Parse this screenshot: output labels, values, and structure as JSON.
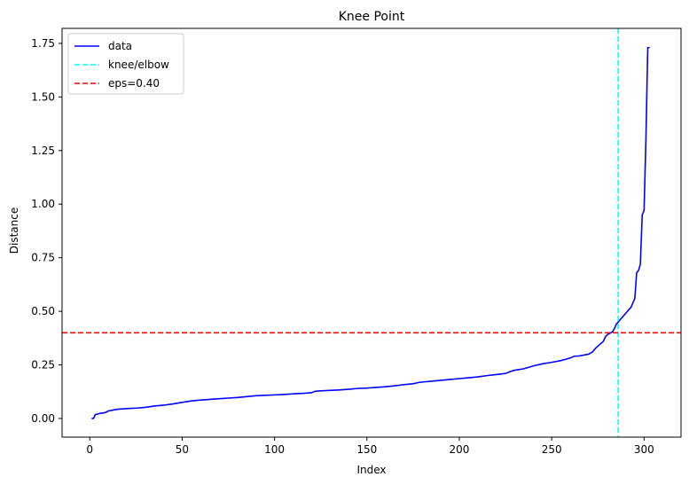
{
  "chart_data": {
    "type": "line",
    "title": "Knee Point",
    "xlabel": "Index",
    "ylabel": "Distance",
    "xlim": [
      -15,
      320
    ],
    "ylim": [
      -0.087,
      1.82
    ],
    "xticks": [
      0,
      50,
      100,
      150,
      200,
      250,
      300
    ],
    "yticks": [
      0.0,
      0.25,
      0.5,
      0.75,
      1.0,
      1.25,
      1.5,
      1.75
    ],
    "xtick_labels": [
      "0",
      "50",
      "100",
      "150",
      "200",
      "250",
      "300"
    ],
    "ytick_labels": [
      "0.00",
      "0.25",
      "0.50",
      "0.75",
      "1.00",
      "1.25",
      "1.50",
      "1.75"
    ],
    "grid": false,
    "legend_position": "top-left",
    "series": [
      {
        "name": "data",
        "color": "#0000ff",
        "style": "solid",
        "x": [
          1,
          2,
          3,
          4,
          5,
          6,
          7,
          8,
          9,
          10,
          15,
          20,
          25,
          30,
          35,
          40,
          45,
          50,
          55,
          60,
          65,
          70,
          75,
          80,
          85,
          90,
          95,
          100,
          105,
          110,
          115,
          120,
          122,
          125,
          130,
          135,
          140,
          145,
          150,
          155,
          160,
          165,
          170,
          175,
          178,
          180,
          185,
          190,
          195,
          200,
          205,
          210,
          215,
          220,
          225,
          228,
          230,
          235,
          240,
          245,
          250,
          255,
          260,
          262,
          265,
          270,
          272,
          274,
          276,
          278,
          279,
          280,
          281,
          282,
          283,
          284,
          285,
          286,
          287,
          288,
          289,
          290,
          291,
          292,
          293,
          294,
          295,
          296,
          297,
          298,
          299,
          300,
          301,
          302,
          303
        ],
        "y": [
          0.0,
          0.0,
          0.018,
          0.02,
          0.022,
          0.025,
          0.025,
          0.027,
          0.03,
          0.035,
          0.043,
          0.046,
          0.048,
          0.052,
          0.058,
          0.062,
          0.068,
          0.075,
          0.082,
          0.086,
          0.089,
          0.092,
          0.095,
          0.098,
          0.102,
          0.106,
          0.108,
          0.11,
          0.112,
          0.115,
          0.117,
          0.12,
          0.127,
          0.129,
          0.131,
          0.133,
          0.136,
          0.14,
          0.142,
          0.145,
          0.148,
          0.152,
          0.158,
          0.162,
          0.168,
          0.17,
          0.174,
          0.178,
          0.182,
          0.186,
          0.19,
          0.194,
          0.2,
          0.205,
          0.21,
          0.22,
          0.225,
          0.232,
          0.245,
          0.255,
          0.262,
          0.27,
          0.282,
          0.29,
          0.292,
          0.3,
          0.31,
          0.33,
          0.345,
          0.36,
          0.38,
          0.39,
          0.395,
          0.4,
          0.405,
          0.42,
          0.44,
          0.45,
          0.46,
          0.47,
          0.48,
          0.49,
          0.5,
          0.51,
          0.52,
          0.54,
          0.56,
          0.68,
          0.69,
          0.72,
          0.95,
          0.97,
          1.3,
          1.73,
          1.73
        ]
      },
      {
        "name": "knee/elbow",
        "color": "#00ffff",
        "style": "dashed",
        "orientation": "vertical",
        "x_value": 286
      },
      {
        "name": "eps=0.40",
        "color": "#ff0000",
        "style": "dashed",
        "orientation": "horizontal",
        "y_value": 0.4
      }
    ]
  }
}
